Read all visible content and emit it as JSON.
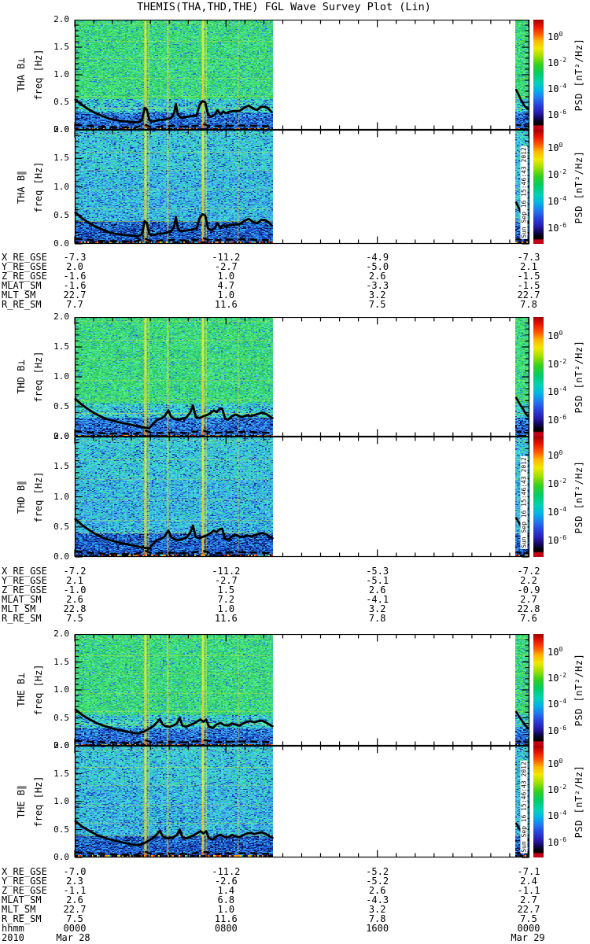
{
  "title": "THEMIS(THA,THD,THE) FGL Wave Survey Plot (Lin)",
  "stamp_text": "Sun Sep 16 15:46:43 2012",
  "freq_axis": {
    "label": "freq [Hz]",
    "ticks": [
      "0.0",
      "0.5",
      "1.0",
      "1.5",
      "2.0"
    ],
    "max": 2.0
  },
  "colorbar": {
    "label": "PSD [nT²/Hz]",
    "tick_exponents": [
      "0",
      "-2",
      "-4",
      "-6"
    ],
    "tick_positions": [
      0.145,
      0.38,
      0.615,
      0.85
    ],
    "gradient": [
      "#a00000 0%",
      "#e81400 6%",
      "#ff5a00 13%",
      "#ffb400 19%",
      "#f0e800 26%",
      "#a0e000 33%",
      "#30d020 41%",
      "#00cc66 49%",
      "#00d2b4 57%",
      "#00b4e6 64%",
      "#1e78f0 71%",
      "#2846dc 77%",
      "#2a1eb4 84%",
      "#140a64 89%",
      "#000000 94%",
      "#000000 95.5%",
      "#c30016 96.5%",
      "#c30016 100%"
    ]
  },
  "time_axis": {
    "label": "hhmm",
    "year": "2010",
    "hour_ticks": [
      0,
      8,
      16,
      24
    ],
    "hour_labels": [
      "0000",
      "0800",
      "1600",
      "0000"
    ],
    "date_left": "Mar 28",
    "date_right": "Mar 29"
  },
  "ephemeris": {
    "row_labels": [
      "X_RE_GSE",
      "Y_RE_GSE",
      "Z_RE_GSE",
      "MLAT_SM",
      "MLT_SM",
      "R_RE_SM"
    ],
    "blocks": [
      {
        "spacecraft": "THA",
        "rows": [
          [
            "-7.3",
            "-11.2",
            "-4.9",
            "-7.3"
          ],
          [
            "2.0",
            "-2.7",
            "-5.0",
            "2.1"
          ],
          [
            "-1.6",
            "1.0",
            "2.6",
            "-1.5"
          ],
          [
            "-1.6",
            "4.7",
            "-3.3",
            "-1.5"
          ],
          [
            "22.7",
            "1.0",
            "3.2",
            "22.7"
          ],
          [
            "7.7",
            "11.6",
            "7.5",
            "7.8"
          ]
        ]
      },
      {
        "spacecraft": "THD",
        "rows": [
          [
            "-7.2",
            "-11.2",
            "-5.3",
            "-7.2"
          ],
          [
            "2.1",
            "-2.7",
            "-5.1",
            "2.2"
          ],
          [
            "-1.0",
            "1.5",
            "2.6",
            "-0.9"
          ],
          [
            "2.6",
            "7.2",
            "-4.1",
            "2.7"
          ],
          [
            "22.8",
            "1.0",
            "3.2",
            "22.8"
          ],
          [
            "7.5",
            "11.6",
            "7.8",
            "7.6"
          ]
        ]
      },
      {
        "spacecraft": "THE",
        "rows": [
          [
            "-7.0",
            "-11.2",
            "-5.2",
            "-7.1"
          ],
          [
            "2.3",
            "-2.6",
            "-5.2",
            "2.4"
          ],
          [
            "-1.1",
            "1.4",
            "2.6",
            "-1.1"
          ],
          [
            "2.6",
            "6.8",
            "-4.3",
            "2.7"
          ],
          [
            "22.7",
            "1.0",
            "3.2",
            "22.7"
          ],
          [
            "7.5",
            "11.6",
            "7.8",
            "7.5"
          ]
        ]
      }
    ]
  },
  "chart_data": {
    "type": "heatmap",
    "description": "Six FGL magnetic wave power spectrograms (B-perp and B-parallel for THEMIS probes THA, THD, THE) vs time, 2010 Mar 28 0000 UT to Mar 29 0000 UT. Data present 0000-~1030 UT and a short segment before 2400 UT; white elsewhere.",
    "x_axis": {
      "unit": "hhmm UT",
      "start": "2010 Mar 28 0000",
      "end": "2010 Mar 29 0000",
      "major_tick_hours": [
        0,
        8,
        16,
        24
      ],
      "minor_tick_hours": 1
    },
    "y_axis": {
      "label": "freq [Hz]",
      "range": [
        0.0,
        2.0
      ],
      "major_ticks": [
        0.0,
        0.5,
        1.0,
        1.5,
        2.0
      ],
      "minor_step": 0.1
    },
    "z_axis": {
      "label": "PSD [nT²/Hz]",
      "scale": "log",
      "tick_values": [
        1,
        0.01,
        0.0001,
        1e-06
      ]
    },
    "data_coverage_hours": [
      [
        0,
        10.5
      ],
      [
        23.3,
        24
      ]
    ],
    "panels": [
      {
        "id": "tha-bperp",
        "spacecraft": "THA",
        "component": "B⊥",
        "style": "perp",
        "curve": "tha",
        "stamp": false
      },
      {
        "id": "tha-bpar",
        "spacecraft": "THA",
        "component": "B∥",
        "style": "par",
        "curve": "tha",
        "stamp": true
      },
      {
        "id": "thd-bperp",
        "spacecraft": "THD",
        "component": "B⊥",
        "style": "perp",
        "curve": "thd",
        "stamp": false
      },
      {
        "id": "thd-bpar",
        "spacecraft": "THD",
        "component": "B∥",
        "style": "par",
        "curve": "thd",
        "stamp": true
      },
      {
        "id": "the-bperp",
        "spacecraft": "THE",
        "component": "B⊥",
        "style": "perp",
        "curve": "the",
        "stamp": false
      },
      {
        "id": "the-bpar",
        "spacecraft": "THE",
        "component": "B∥",
        "style": "par",
        "curve": "the",
        "stamp": true
      }
    ],
    "stripes": [
      {
        "hour": 3.74,
        "width": 3,
        "alpha": 0.8
      },
      {
        "hour": 4.92,
        "width": 2,
        "alpha": 0.5
      },
      {
        "hour": 6.78,
        "width": 3,
        "alpha": 0.85
      },
      {
        "hour": 8.65,
        "width": 1.5,
        "alpha": 0.3
      }
    ],
    "bands_hz": [
      {
        "freq": 1.93,
        "alpha": 0.3
      },
      {
        "freq": 1.62,
        "alpha": 0.35
      },
      {
        "freq": 1.3,
        "alpha": 0.25
      },
      {
        "freq": 0.95,
        "alpha": 0.3
      },
      {
        "freq": 0.62,
        "alpha": 0.3
      },
      {
        "freq": 0.4,
        "alpha": 0.45
      }
    ],
    "overlay_curves": {
      "tha": {
        "solid": [
          [
            0,
            0.56
          ],
          [
            0.35,
            0.46
          ],
          [
            0.7,
            0.38
          ],
          [
            1.05,
            0.31
          ],
          [
            1.4,
            0.26
          ],
          [
            1.75,
            0.21
          ],
          [
            2.1,
            0.18
          ],
          [
            2.45,
            0.16
          ],
          [
            2.8,
            0.15
          ],
          [
            3.1,
            0.14
          ],
          [
            3.35,
            0.135
          ],
          [
            3.55,
            0.17
          ],
          [
            3.7,
            0.4
          ],
          [
            3.82,
            0.36
          ],
          [
            3.95,
            0.17
          ],
          [
            4.15,
            0.15
          ],
          [
            4.4,
            0.18
          ],
          [
            4.65,
            0.18
          ],
          [
            4.9,
            0.2
          ],
          [
            5.1,
            0.22
          ],
          [
            5.25,
            0.3
          ],
          [
            5.35,
            0.47
          ],
          [
            5.45,
            0.28
          ],
          [
            5.6,
            0.22
          ],
          [
            5.8,
            0.23
          ],
          [
            6.0,
            0.24
          ],
          [
            6.2,
            0.25
          ],
          [
            6.45,
            0.27
          ],
          [
            6.6,
            0.45
          ],
          [
            6.75,
            0.52
          ],
          [
            6.9,
            0.5
          ],
          [
            7.05,
            0.27
          ],
          [
            7.2,
            0.24
          ],
          [
            7.4,
            0.27
          ],
          [
            7.55,
            0.36
          ],
          [
            7.7,
            0.28
          ],
          [
            7.85,
            0.33
          ],
          [
            8.0,
            0.3
          ],
          [
            8.2,
            0.33
          ],
          [
            8.45,
            0.34
          ],
          [
            8.7,
            0.34
          ],
          [
            8.95,
            0.4
          ],
          [
            9.2,
            0.44
          ],
          [
            9.45,
            0.38
          ],
          [
            9.65,
            0.36
          ],
          [
            9.85,
            0.42
          ],
          [
            10.05,
            0.42
          ],
          [
            10.25,
            0.38
          ],
          [
            10.45,
            0.31
          ]
        ],
        "dashed": [
          [
            0,
            0.09
          ],
          [
            0.8,
            0.07
          ],
          [
            1.6,
            0.05
          ],
          [
            2.4,
            0.045
          ],
          [
            3.2,
            0.04
          ],
          [
            3.7,
            0.095
          ],
          [
            4.0,
            0.05
          ],
          [
            4.6,
            0.06
          ],
          [
            5.2,
            0.07
          ],
          [
            5.8,
            0.06
          ],
          [
            6.4,
            0.07
          ],
          [
            6.8,
            0.1
          ],
          [
            7.2,
            0.06
          ],
          [
            7.8,
            0.07
          ],
          [
            8.4,
            0.075
          ],
          [
            9.0,
            0.08
          ],
          [
            9.6,
            0.07
          ],
          [
            10.2,
            0.065
          ],
          [
            10.45,
            0.055
          ]
        ],
        "strip": [
          [
            23.32,
            0.74
          ],
          [
            23.45,
            0.65
          ],
          [
            23.6,
            0.54
          ],
          [
            23.75,
            0.45
          ],
          [
            23.9,
            0.39
          ],
          [
            24,
            0.36
          ]
        ],
        "strip_dashed": [
          [
            23.35,
            0.09
          ],
          [
            24,
            0.06
          ]
        ]
      },
      "thd": {
        "solid": [
          [
            0,
            0.64
          ],
          [
            0.35,
            0.54
          ],
          [
            0.7,
            0.46
          ],
          [
            1.05,
            0.39
          ],
          [
            1.4,
            0.33
          ],
          [
            1.75,
            0.29
          ],
          [
            2.1,
            0.26
          ],
          [
            2.45,
            0.23
          ],
          [
            2.8,
            0.21
          ],
          [
            3.1,
            0.19
          ],
          [
            3.4,
            0.17
          ],
          [
            3.7,
            0.15
          ],
          [
            3.95,
            0.14
          ],
          [
            4.15,
            0.22
          ],
          [
            4.35,
            0.28
          ],
          [
            4.55,
            0.3
          ],
          [
            4.75,
            0.34
          ],
          [
            4.95,
            0.44
          ],
          [
            5.1,
            0.33
          ],
          [
            5.3,
            0.29
          ],
          [
            5.5,
            0.28
          ],
          [
            5.7,
            0.3
          ],
          [
            5.9,
            0.32
          ],
          [
            6.1,
            0.4
          ],
          [
            6.25,
            0.52
          ],
          [
            6.4,
            0.33
          ],
          [
            6.6,
            0.31
          ],
          [
            6.8,
            0.34
          ],
          [
            7.0,
            0.36
          ],
          [
            7.2,
            0.4
          ],
          [
            7.35,
            0.44
          ],
          [
            7.5,
            0.41
          ],
          [
            7.65,
            0.46
          ],
          [
            7.8,
            0.47
          ],
          [
            7.95,
            0.3
          ],
          [
            8.1,
            0.28
          ],
          [
            8.3,
            0.34
          ],
          [
            8.5,
            0.37
          ],
          [
            8.7,
            0.34
          ],
          [
            8.9,
            0.33
          ],
          [
            9.1,
            0.36
          ],
          [
            9.3,
            0.34
          ],
          [
            9.5,
            0.36
          ],
          [
            9.7,
            0.38
          ],
          [
            9.9,
            0.4
          ],
          [
            10.1,
            0.38
          ],
          [
            10.3,
            0.34
          ],
          [
            10.5,
            0.3
          ]
        ],
        "dashed": [
          [
            0,
            0.09
          ],
          [
            0.8,
            0.07
          ],
          [
            1.6,
            0.055
          ],
          [
            2.4,
            0.05
          ],
          [
            3.2,
            0.045
          ],
          [
            3.75,
            0.1
          ],
          [
            4.1,
            0.055
          ],
          [
            4.7,
            0.065
          ],
          [
            5.3,
            0.07
          ],
          [
            5.9,
            0.06
          ],
          [
            6.3,
            0.08
          ],
          [
            6.8,
            0.1
          ],
          [
            7.3,
            0.06
          ],
          [
            7.9,
            0.07
          ],
          [
            8.5,
            0.075
          ],
          [
            9.1,
            0.08
          ],
          [
            9.7,
            0.07
          ],
          [
            10.2,
            0.065
          ],
          [
            10.5,
            0.055
          ]
        ],
        "strip": [
          [
            23.32,
            0.66
          ],
          [
            23.5,
            0.56
          ],
          [
            23.7,
            0.46
          ],
          [
            23.85,
            0.38
          ],
          [
            24,
            0.33
          ]
        ],
        "strip_dashed": [
          [
            23.35,
            0.08
          ],
          [
            24,
            0.06
          ]
        ]
      },
      "the": {
        "solid": [
          [
            0,
            0.66
          ],
          [
            0.4,
            0.55
          ],
          [
            0.8,
            0.47
          ],
          [
            1.2,
            0.4
          ],
          [
            1.6,
            0.35
          ],
          [
            2.0,
            0.31
          ],
          [
            2.4,
            0.28
          ],
          [
            2.8,
            0.25
          ],
          [
            3.1,
            0.23
          ],
          [
            3.4,
            0.22
          ],
          [
            3.7,
            0.26
          ],
          [
            3.95,
            0.31
          ],
          [
            4.15,
            0.35
          ],
          [
            4.35,
            0.42
          ],
          [
            4.5,
            0.48
          ],
          [
            4.65,
            0.38
          ],
          [
            4.8,
            0.35
          ],
          [
            5.0,
            0.34
          ],
          [
            5.2,
            0.36
          ],
          [
            5.4,
            0.4
          ],
          [
            5.55,
            0.5
          ],
          [
            5.7,
            0.36
          ],
          [
            5.9,
            0.34
          ],
          [
            6.1,
            0.37
          ],
          [
            6.3,
            0.4
          ],
          [
            6.5,
            0.44
          ],
          [
            6.65,
            0.47
          ],
          [
            6.8,
            0.43
          ],
          [
            6.95,
            0.47
          ],
          [
            7.1,
            0.34
          ],
          [
            7.3,
            0.32
          ],
          [
            7.5,
            0.38
          ],
          [
            7.7,
            0.41
          ],
          [
            7.9,
            0.37
          ],
          [
            8.1,
            0.36
          ],
          [
            8.3,
            0.4
          ],
          [
            8.5,
            0.38
          ],
          [
            8.7,
            0.36
          ],
          [
            8.9,
            0.4
          ],
          [
            9.1,
            0.43
          ],
          [
            9.3,
            0.44
          ],
          [
            9.5,
            0.42
          ],
          [
            9.7,
            0.44
          ],
          [
            9.9,
            0.45
          ],
          [
            10.1,
            0.42
          ],
          [
            10.3,
            0.38
          ],
          [
            10.5,
            0.34
          ]
        ],
        "dashed": [
          [
            0,
            0.09
          ],
          [
            0.8,
            0.075
          ],
          [
            1.6,
            0.06
          ],
          [
            2.4,
            0.05
          ],
          [
            3.2,
            0.045
          ],
          [
            3.75,
            0.1
          ],
          [
            4.1,
            0.055
          ],
          [
            4.7,
            0.065
          ],
          [
            5.3,
            0.07
          ],
          [
            5.9,
            0.06
          ],
          [
            6.4,
            0.08
          ],
          [
            6.95,
            0.1
          ],
          [
            7.4,
            0.06
          ],
          [
            8.0,
            0.07
          ],
          [
            8.6,
            0.075
          ],
          [
            9.2,
            0.08
          ],
          [
            9.8,
            0.07
          ],
          [
            10.3,
            0.065
          ],
          [
            10.5,
            0.055
          ]
        ],
        "strip": [
          [
            23.32,
            0.62
          ],
          [
            23.5,
            0.52
          ],
          [
            23.7,
            0.42
          ],
          [
            23.85,
            0.35
          ],
          [
            24,
            0.3
          ]
        ],
        "strip_dashed": [
          [
            23.35,
            0.08
          ],
          [
            24,
            0.06
          ]
        ]
      }
    }
  }
}
